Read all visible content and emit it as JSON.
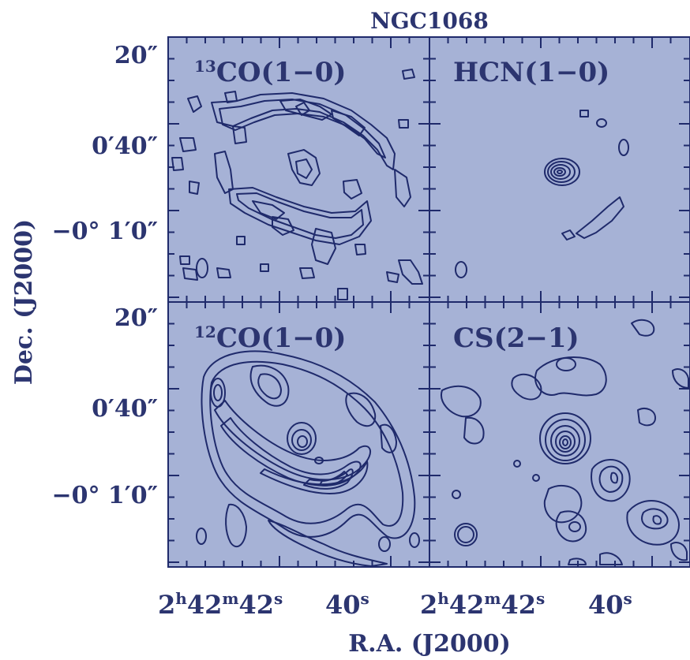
{
  "chart_data": {
    "type": "contour",
    "title": "NGC1068",
    "xlabel": "R.A. (J2000)",
    "ylabel": "Dec. (J2000)",
    "grid": false,
    "layout": "2x2 panels",
    "x_tick_labels": [
      {
        "h": "2",
        "m": "42",
        "s": "42"
      },
      {
        "s": "40"
      }
    ],
    "y_tick_labels": [
      {
        "value": "20″"
      },
      {
        "value": "0′40″"
      },
      {
        "value": "−0° 1′0″"
      }
    ],
    "panels": [
      {
        "id": "13co",
        "label_sup": "13",
        "label_main": "CO(1−0)",
        "row": 0,
        "col": 0
      },
      {
        "id": "hcn",
        "label_sup": "",
        "label_main": "HCN(1−0)",
        "row": 0,
        "col": 1
      },
      {
        "id": "12co",
        "label_sup": "12",
        "label_main": "CO(1−0)",
        "row": 1,
        "col": 0
      },
      {
        "id": "cs",
        "label_sup": "",
        "label_main": "CS(2−1)",
        "row": 1,
        "col": 1
      }
    ],
    "colors": {
      "background": "#a6b2d6",
      "contour": "#1f2a6b",
      "text": "#2c3570"
    }
  }
}
